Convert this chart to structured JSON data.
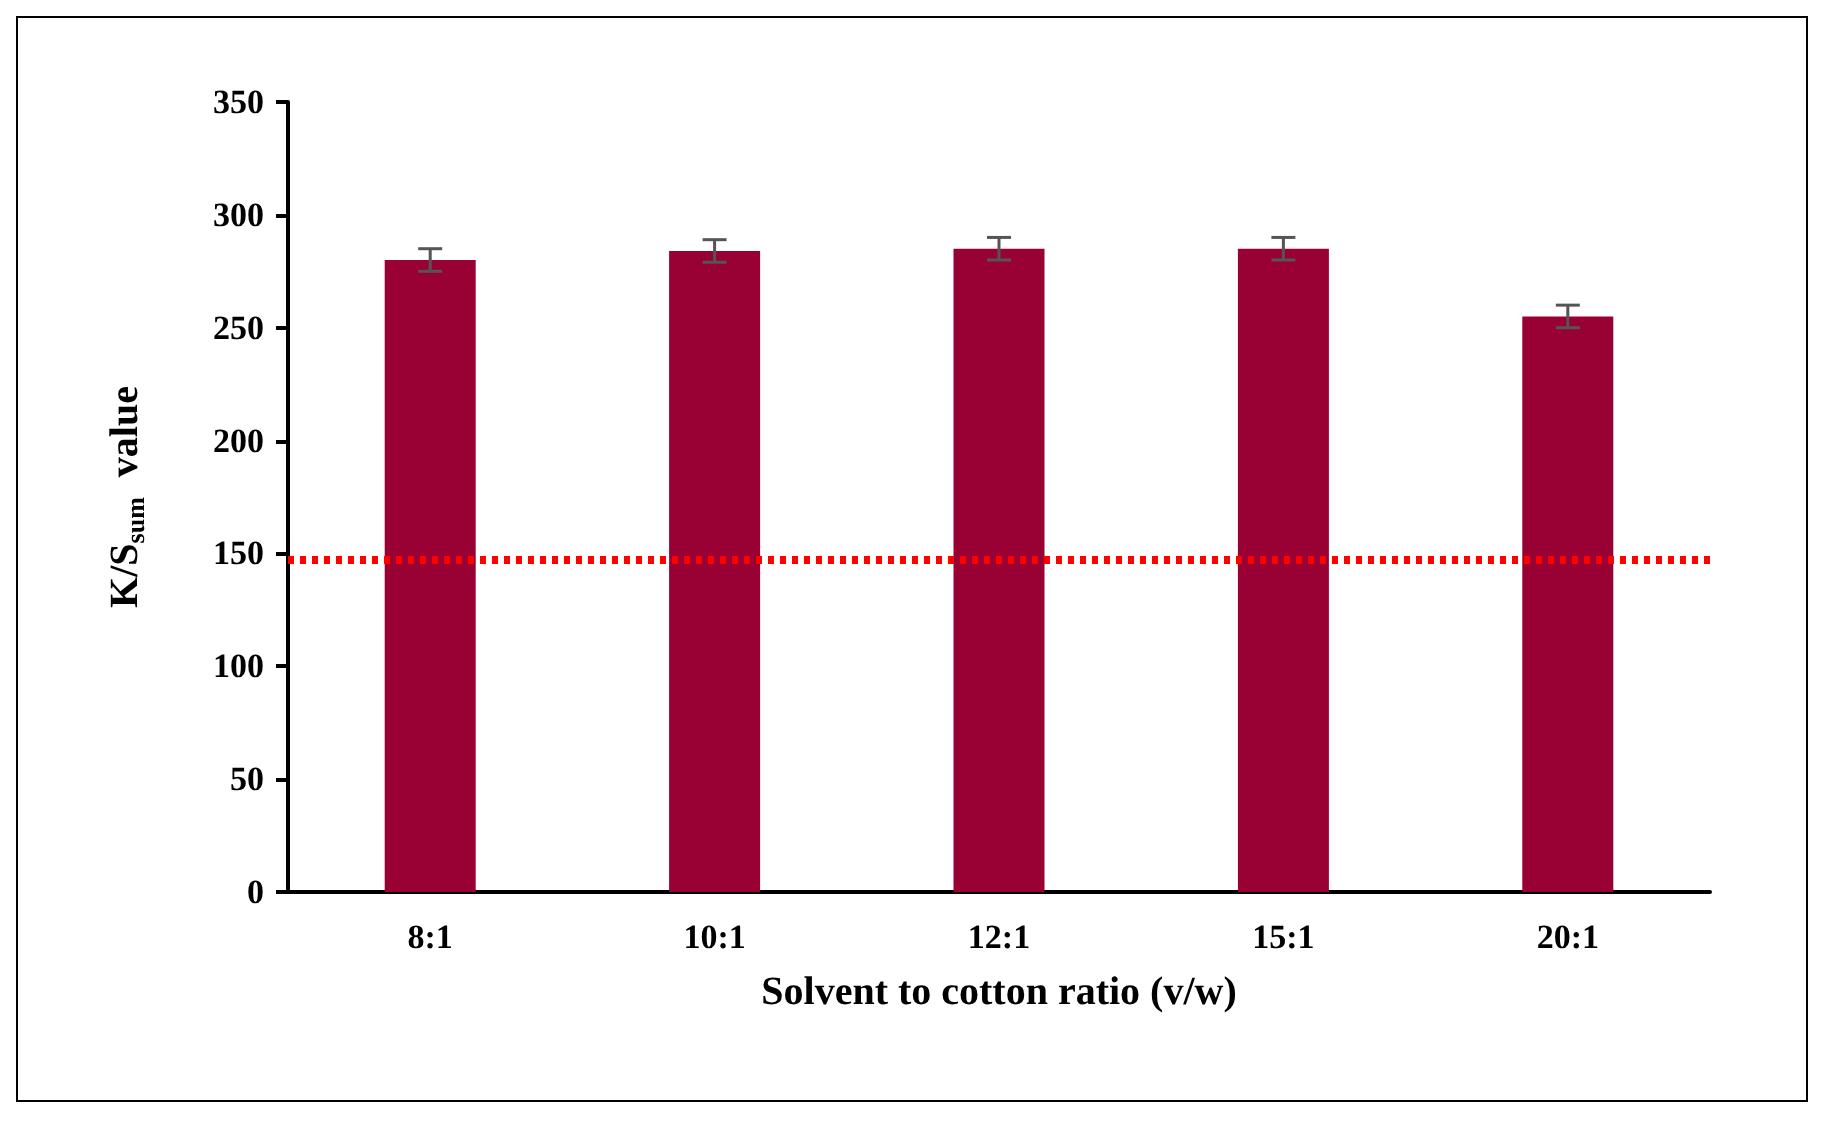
{
  "chart_data": {
    "type": "bar",
    "xlabel": "Solvent to cotton ratio (v/w)",
    "ylabel": "K/S$_{sum}$  value",
    "categories": [
      "8:1",
      "10:1",
      "12:1",
      "15:1",
      "20:1"
    ],
    "values": [
      280,
      284,
      285,
      285,
      255
    ],
    "errors": [
      5,
      5,
      5,
      5,
      5
    ],
    "color": "#990033",
    "ylim": [
      0,
      350
    ],
    "yticks": [
      0,
      50,
      100,
      150,
      200,
      250,
      300,
      350
    ],
    "grid": false,
    "ref_lines": [
      {
        "axis": "y",
        "value": 147,
        "color": "#ff0000",
        "line_style": "dotted"
      }
    ]
  }
}
